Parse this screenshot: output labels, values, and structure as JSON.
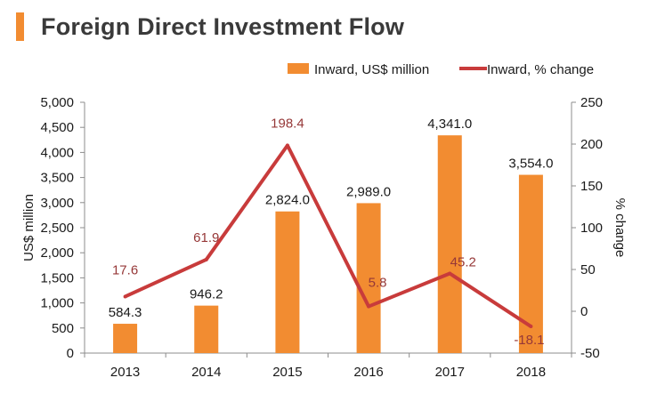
{
  "title": "Foreign Direct Investment Flow",
  "colors": {
    "bar": "#f28c31",
    "line": "#c83b3b",
    "line_label": "#963838",
    "title_accent": "#f28c31"
  },
  "chart_data": {
    "type": "bar",
    "categories": [
      "2013",
      "2014",
      "2015",
      "2016",
      "2017",
      "2018"
    ],
    "series": [
      {
        "name": "Inward, US$ million",
        "type": "bar",
        "axis": "left",
        "values": [
          584.3,
          946.2,
          2824.0,
          2989.0,
          4341.0,
          3554.0
        ],
        "labels": [
          "584.3",
          "946.2",
          "2,824.0",
          "2,989.0",
          "4,341.0",
          "3,554.0"
        ]
      },
      {
        "name": "Inward, % change",
        "type": "line",
        "axis": "right",
        "values": [
          17.6,
          61.9,
          198.4,
          5.8,
          45.2,
          -18.1
        ],
        "labels": [
          "17.6",
          "61.9",
          "198.4",
          "5.8",
          "45.2",
          "-18.1"
        ]
      }
    ],
    "ylabel": "US$ million",
    "y2label": "% change",
    "ylim": [
      0,
      5000
    ],
    "y2lim": [
      -50,
      250
    ],
    "yticks": [
      "0",
      "500",
      "1,000",
      "1,500",
      "2,000",
      "2,500",
      "3,000",
      "3,500",
      "4,000",
      "4,500",
      "5,000"
    ],
    "y2ticks": [
      "-50",
      "0",
      "50",
      "100",
      "150",
      "200",
      "250"
    ],
    "legend": "top-right",
    "grid": false
  }
}
